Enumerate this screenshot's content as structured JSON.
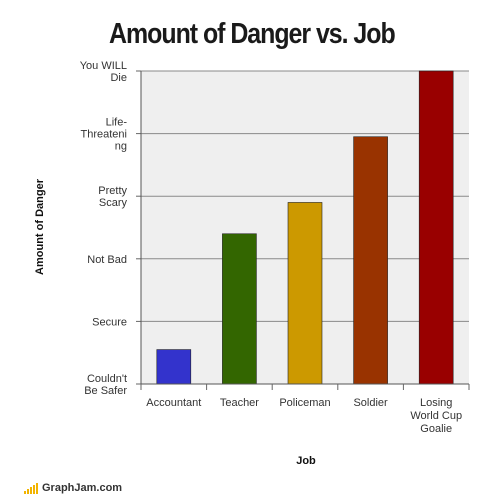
{
  "chart_data": {
    "type": "bar",
    "title": "Amount of Danger vs. Job",
    "xlabel": "Job",
    "ylabel": "Amount of Danger",
    "categories": [
      "Accountant",
      "Teacher",
      "Policeman",
      "Soldier",
      "Losing World Cup Goalie"
    ],
    "y_tick_labels": [
      "Couldn't Be Safer",
      "Secure",
      "Not Bad",
      "Pretty Scary",
      "Life-Threatening",
      "You WILL Die"
    ],
    "values": [
      0.55,
      2.4,
      2.9,
      3.95,
      5.0
    ],
    "ylim": [
      0,
      5
    ],
    "colors": [
      "#3333cc",
      "#336600",
      "#cc9900",
      "#993300",
      "#990000"
    ],
    "grid": true,
    "legend": "none"
  },
  "footer": {
    "brand": "GraphJam.com"
  }
}
